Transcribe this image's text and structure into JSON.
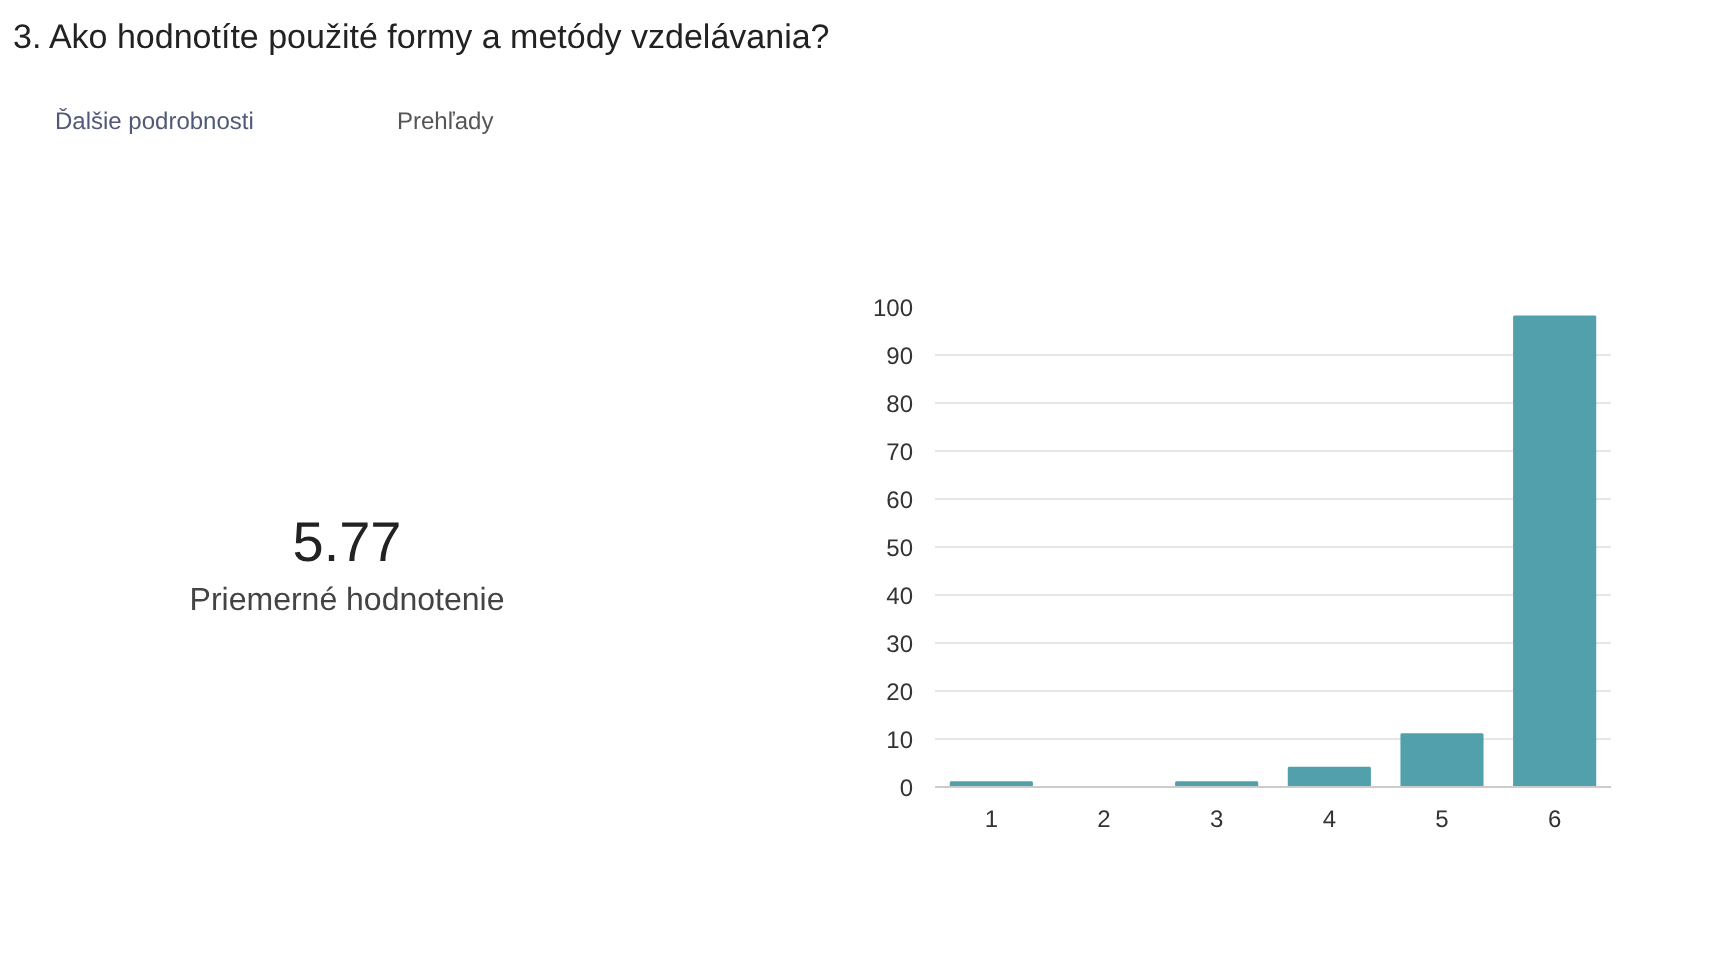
{
  "chart_data": {
    "type": "bar",
    "title": "3.  Ako hodnotíte použité formy a metódy vzdelávania?",
    "annotations": [
      "Ďalšie podrobnosti",
      "Prehľady",
      "5.77",
      "Priemerné hodnotenie"
    ],
    "categories": [
      "1",
      "2",
      "3",
      "4",
      "5",
      "6"
    ],
    "values": [
      1,
      0,
      1,
      4,
      11,
      98
    ],
    "color": "#52a0ab",
    "ylim": [
      0,
      100
    ],
    "yticks": [
      0,
      10,
      20,
      30,
      40,
      50,
      60,
      70,
      80,
      90,
      100
    ],
    "grid": "y"
  }
}
